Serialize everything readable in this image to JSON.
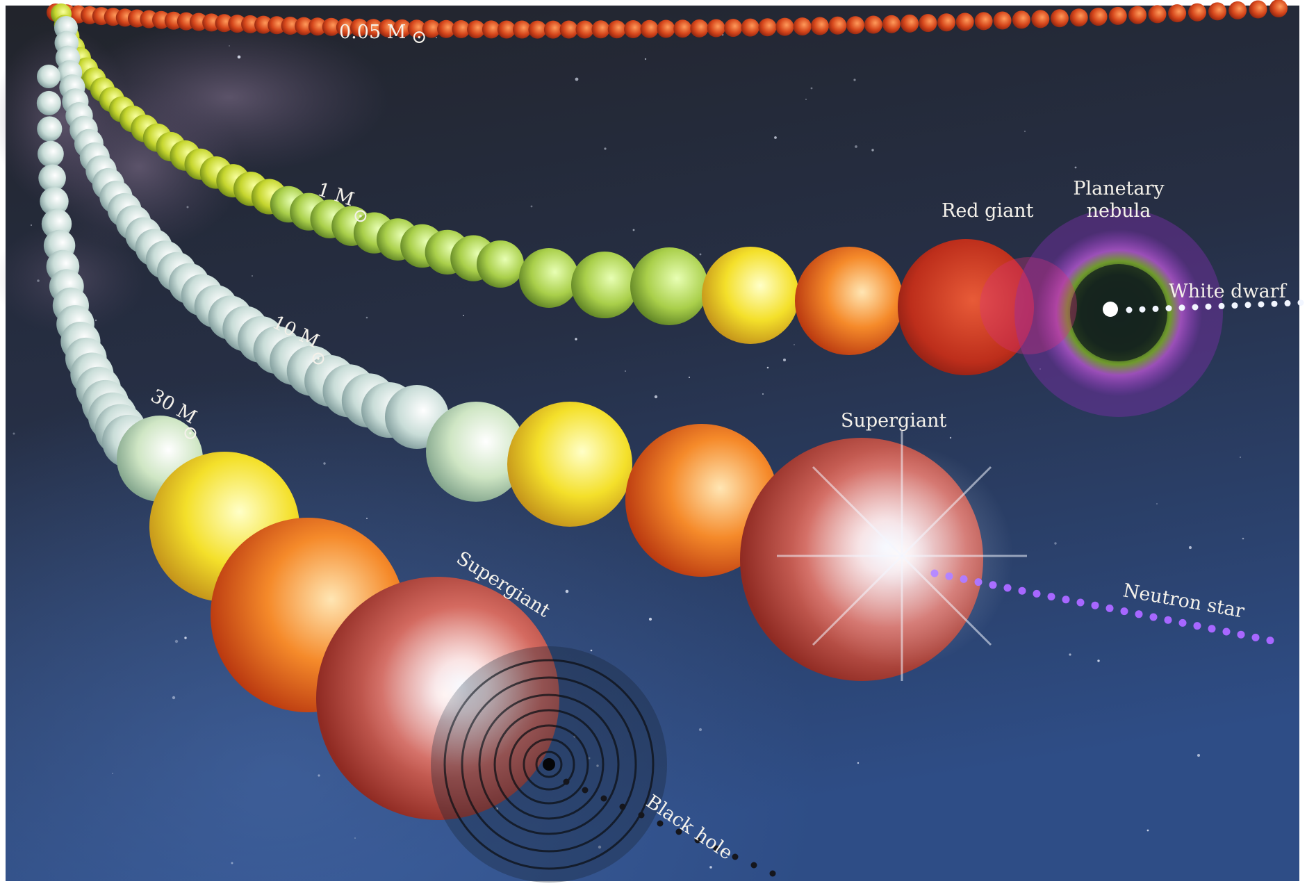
{
  "tracks": [
    {
      "mass_label": "0.05 M",
      "color": "#c8451c"
    },
    {
      "mass_label": "1 M",
      "color": "#c9d834"
    },
    {
      "mass_label": "10 M",
      "color": "#cfe3dc"
    },
    {
      "mass_label": "30 M",
      "color": "#cfe3dc"
    }
  ],
  "stages": {
    "red_giant": "Red giant",
    "planetary_nebula_line1": "Planetary",
    "planetary_nebula_line2": "nebula",
    "white_dwarf": "White dwarf",
    "supergiant_10": "Supergiant",
    "neutron_star": "Neutron star",
    "supergiant_30": "Supergiant",
    "black_hole": "Black hole"
  },
  "sun_symbol": "⊙",
  "colors": {
    "space_top": "#23262e",
    "space_bottom": "#2c4a82",
    "white_dwarf_trail": "#f2f6ff",
    "neutron_star_trail": "#a767ff",
    "black_hole_trail": "#15161c"
  }
}
